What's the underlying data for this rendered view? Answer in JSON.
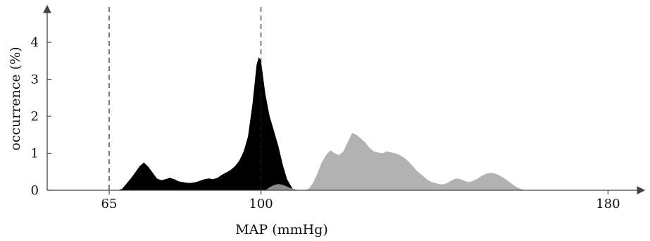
{
  "chart_data": {
    "type": "area",
    "xlabel": "MAP (mmHg)",
    "ylabel": "occurrence (%)",
    "x_ticks": [
      65,
      100,
      180
    ],
    "y_ticks": [
      0,
      1,
      2,
      3,
      4
    ],
    "xlim": [
      50,
      188
    ],
    "ylim": [
      0,
      4.8
    ],
    "reference_lines": [
      65,
      100
    ],
    "grid": false,
    "legend": "none",
    "colors": {
      "black_series": "#000000",
      "gray_series": "#b2b2b2",
      "dark_gray_series": "#8c8c8c",
      "axis": "#444444"
    },
    "series": [
      {
        "color": "black_series",
        "points": [
          [
            67,
            0
          ],
          [
            68,
            0.04
          ],
          [
            69,
            0.18
          ],
          [
            70,
            0.32
          ],
          [
            71,
            0.48
          ],
          [
            72,
            0.65
          ],
          [
            73,
            0.75
          ],
          [
            74,
            0.64
          ],
          [
            75,
            0.48
          ],
          [
            76,
            0.32
          ],
          [
            77,
            0.27
          ],
          [
            78,
            0.3
          ],
          [
            79,
            0.34
          ],
          [
            80,
            0.3
          ],
          [
            81,
            0.24
          ],
          [
            82,
            0.22
          ],
          [
            83,
            0.2
          ],
          [
            84,
            0.2
          ],
          [
            85,
            0.22
          ],
          [
            86,
            0.26
          ],
          [
            87,
            0.3
          ],
          [
            88,
            0.32
          ],
          [
            89,
            0.3
          ],
          [
            90,
            0.34
          ],
          [
            91,
            0.42
          ],
          [
            92,
            0.48
          ],
          [
            93,
            0.55
          ],
          [
            94,
            0.65
          ],
          [
            95,
            0.8
          ],
          [
            96,
            1.05
          ],
          [
            97,
            1.45
          ],
          [
            98,
            2.3
          ],
          [
            99,
            3.4
          ],
          [
            99.5,
            3.6
          ],
          [
            100,
            3.5
          ],
          [
            101,
            2.6
          ],
          [
            102,
            2.0
          ],
          [
            103,
            1.6
          ],
          [
            104,
            1.2
          ],
          [
            105,
            0.7
          ],
          [
            106,
            0.3
          ],
          [
            107,
            0.1
          ],
          [
            107.5,
            0
          ]
        ]
      },
      {
        "color": "dark_gray_series",
        "points": [
          [
            101,
            0
          ],
          [
            102,
            0.08
          ],
          [
            103,
            0.14
          ],
          [
            104,
            0.17
          ],
          [
            105,
            0.15
          ],
          [
            106,
            0.1
          ],
          [
            107,
            0.05
          ],
          [
            108,
            0.02
          ],
          [
            109,
            0
          ]
        ]
      },
      {
        "color": "gray_series",
        "points": [
          [
            110,
            0
          ],
          [
            111,
            0.04
          ],
          [
            112,
            0.2
          ],
          [
            113,
            0.45
          ],
          [
            114,
            0.75
          ],
          [
            115,
            0.95
          ],
          [
            116,
            1.08
          ],
          [
            117,
            1.0
          ],
          [
            118,
            0.95
          ],
          [
            119,
            1.05
          ],
          [
            120,
            1.3
          ],
          [
            121,
            1.55
          ],
          [
            122,
            1.5
          ],
          [
            123,
            1.4
          ],
          [
            124,
            1.3
          ],
          [
            125,
            1.15
          ],
          [
            126,
            1.05
          ],
          [
            127,
            1.02
          ],
          [
            128,
            1.0
          ],
          [
            129,
            1.05
          ],
          [
            130,
            1.02
          ],
          [
            131,
            1.0
          ],
          [
            132,
            0.95
          ],
          [
            133,
            0.88
          ],
          [
            134,
            0.78
          ],
          [
            135,
            0.65
          ],
          [
            136,
            0.52
          ],
          [
            137,
            0.42
          ],
          [
            138,
            0.32
          ],
          [
            139,
            0.24
          ],
          [
            140,
            0.2
          ],
          [
            141,
            0.17
          ],
          [
            142,
            0.16
          ],
          [
            143,
            0.2
          ],
          [
            144,
            0.27
          ],
          [
            145,
            0.32
          ],
          [
            146,
            0.3
          ],
          [
            147,
            0.25
          ],
          [
            148,
            0.22
          ],
          [
            149,
            0.26
          ],
          [
            150,
            0.32
          ],
          [
            151,
            0.4
          ],
          [
            152,
            0.45
          ],
          [
            153,
            0.47
          ],
          [
            154,
            0.45
          ],
          [
            155,
            0.4
          ],
          [
            156,
            0.33
          ],
          [
            157,
            0.25
          ],
          [
            158,
            0.16
          ],
          [
            159,
            0.08
          ],
          [
            160,
            0.03
          ],
          [
            161,
            0
          ]
        ]
      }
    ]
  }
}
